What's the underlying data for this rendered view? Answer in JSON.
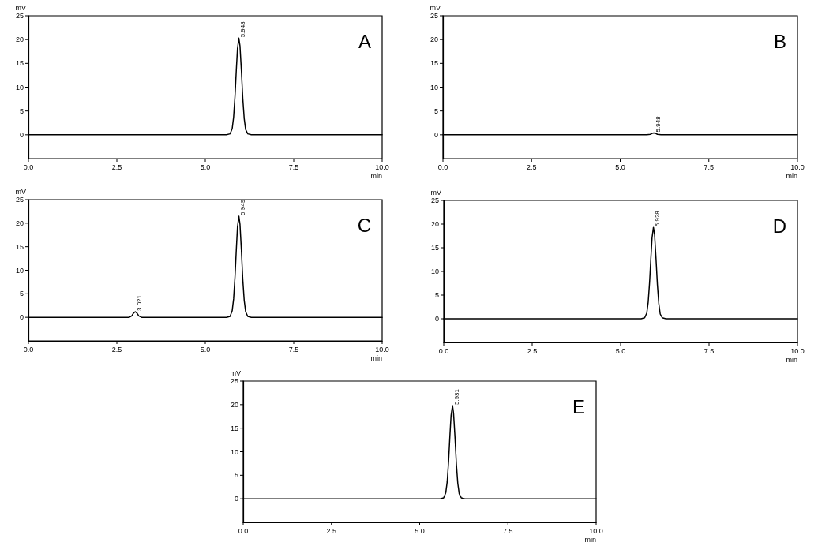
{
  "chart_data": [
    {
      "type": "line",
      "title": "A",
      "xlabel": "min",
      "ylabel": "mV",
      "x": [
        0,
        5.6,
        5.7,
        5.76,
        5.8,
        5.84,
        5.88,
        5.91,
        5.948,
        5.98,
        6.02,
        6.06,
        6.1,
        6.14,
        6.2,
        6.3,
        10
      ],
      "values": [
        0,
        0,
        0.2,
        1.3,
        3.7,
        8.2,
        14.1,
        18.1,
        20.3,
        18.7,
        13.5,
        7.6,
        3.4,
        1.1,
        0.2,
        0,
        0
      ],
      "color": "#000000",
      "xlim": [
        0,
        10
      ],
      "xticks": [
        {
          "value": 0,
          "label": "0.0"
        },
        {
          "value": 2.5,
          "label": "2.5"
        },
        {
          "value": 5,
          "label": "5.0"
        },
        {
          "value": 7.5,
          "label": "7.5"
        },
        {
          "value": 10,
          "label": "10.0"
        }
      ],
      "ylim": [
        -5,
        25
      ],
      "yticks": [
        0,
        5,
        10,
        15,
        20,
        25
      ],
      "marker": "none",
      "line_style": "solid",
      "annotations": [
        {
          "text": "5.948",
          "x": 5.948,
          "y": 20.3
        }
      ]
    },
    {
      "type": "line",
      "title": "B",
      "xlabel": "min",
      "ylabel": "mV",
      "x": [
        0,
        5.75,
        5.85,
        5.9,
        5.948,
        6,
        6.05,
        6.15,
        10
      ],
      "values": [
        0,
        0,
        0.1,
        0.3,
        0.4,
        0.3,
        0.1,
        0,
        0
      ],
      "color": "#000000",
      "xlim": [
        0,
        10
      ],
      "xticks": [
        {
          "value": 0,
          "label": "0.0"
        },
        {
          "value": 2.5,
          "label": "2.5"
        },
        {
          "value": 5,
          "label": "5.0"
        },
        {
          "value": 7.5,
          "label": "7.5"
        },
        {
          "value": 10,
          "label": "10.0"
        }
      ],
      "ylim": [
        -5,
        25
      ],
      "yticks": [
        0,
        5,
        10,
        15,
        20,
        25
      ],
      "marker": "none",
      "line_style": "solid",
      "annotations": [
        {
          "text": "5.948",
          "x": 5.948,
          "y": 0.4
        }
      ]
    },
    {
      "type": "line",
      "title": "C",
      "xlabel": "min",
      "ylabel": "mV",
      "x": [
        0,
        2.85,
        2.92,
        2.97,
        3.021,
        3.07,
        3.12,
        3.2,
        5.6,
        5.7,
        5.76,
        5.8,
        5.84,
        5.88,
        5.91,
        5.949,
        5.98,
        6.02,
        6.06,
        6.1,
        6.14,
        6.2,
        6.3,
        10
      ],
      "values": [
        0,
        0,
        0.3,
        0.9,
        1.2,
        0.9,
        0.3,
        0,
        0,
        0.2,
        1.4,
        3.9,
        8.7,
        14.9,
        19.2,
        21.5,
        19.8,
        14.3,
        8.0,
        3.6,
        1.2,
        0.2,
        0,
        0
      ],
      "color": "#000000",
      "xlim": [
        0,
        10
      ],
      "xticks": [
        {
          "value": 0,
          "label": "0.0"
        },
        {
          "value": 2.5,
          "label": "2.5"
        },
        {
          "value": 5,
          "label": "5.0"
        },
        {
          "value": 7.5,
          "label": "7.5"
        },
        {
          "value": 10,
          "label": "10.0"
        }
      ],
      "ylim": [
        -5,
        25
      ],
      "yticks": [
        0,
        5,
        10,
        15,
        20,
        25
      ],
      "marker": "none",
      "line_style": "solid",
      "annotations": [
        {
          "text": "3.021",
          "x": 3.021,
          "y": 1.2
        },
        {
          "text": "5.949",
          "x": 5.949,
          "y": 21.5
        }
      ]
    },
    {
      "type": "line",
      "title": "D",
      "xlabel": "min",
      "ylabel": "mV",
      "x": [
        0,
        5.58,
        5.68,
        5.74,
        5.78,
        5.82,
        5.86,
        5.89,
        5.928,
        5.96,
        6,
        6.04,
        6.08,
        6.12,
        6.18,
        6.28,
        10
      ],
      "values": [
        0,
        0,
        0.2,
        1.2,
        3.5,
        7.8,
        13.4,
        17.2,
        19.3,
        17.8,
        12.8,
        7.2,
        3.2,
        1.0,
        0.2,
        0,
        0
      ],
      "color": "#000000",
      "xlim": [
        0,
        10
      ],
      "xticks": [
        {
          "value": 0,
          "label": "0.0"
        },
        {
          "value": 2.5,
          "label": "2.5"
        },
        {
          "value": 5,
          "label": "5.0"
        },
        {
          "value": 7.5,
          "label": "7.5"
        },
        {
          "value": 10,
          "label": "10.0"
        }
      ],
      "ylim": [
        -5,
        25
      ],
      "yticks": [
        0,
        5,
        10,
        15,
        20,
        25
      ],
      "marker": "none",
      "line_style": "solid",
      "annotations": [
        {
          "text": "5.928",
          "x": 5.928,
          "y": 19.3
        }
      ]
    },
    {
      "type": "line",
      "title": "E",
      "xlabel": "min",
      "ylabel": "mV",
      "x": [
        0,
        5.58,
        5.68,
        5.74,
        5.78,
        5.82,
        5.86,
        5.89,
        5.931,
        5.96,
        6,
        6.04,
        6.08,
        6.12,
        6.18,
        6.28,
        10
      ],
      "values": [
        0,
        0,
        0.2,
        1.3,
        3.6,
        8.0,
        13.8,
        17.7,
        19.8,
        18.2,
        13.2,
        7.4,
        3.3,
        1.1,
        0.2,
        0,
        0
      ],
      "color": "#000000",
      "xlim": [
        0,
        10
      ],
      "xticks": [
        {
          "value": 0,
          "label": "0.0"
        },
        {
          "value": 2.5,
          "label": "2.5"
        },
        {
          "value": 5,
          "label": "5.0"
        },
        {
          "value": 7.5,
          "label": "7.5"
        },
        {
          "value": 10,
          "label": "10.0"
        }
      ],
      "ylim": [
        -5,
        25
      ],
      "yticks": [
        0,
        5,
        10,
        15,
        20,
        25
      ],
      "marker": "none",
      "line_style": "solid",
      "annotations": [
        {
          "text": "5.931",
          "x": 5.931,
          "y": 19.8
        }
      ]
    }
  ]
}
